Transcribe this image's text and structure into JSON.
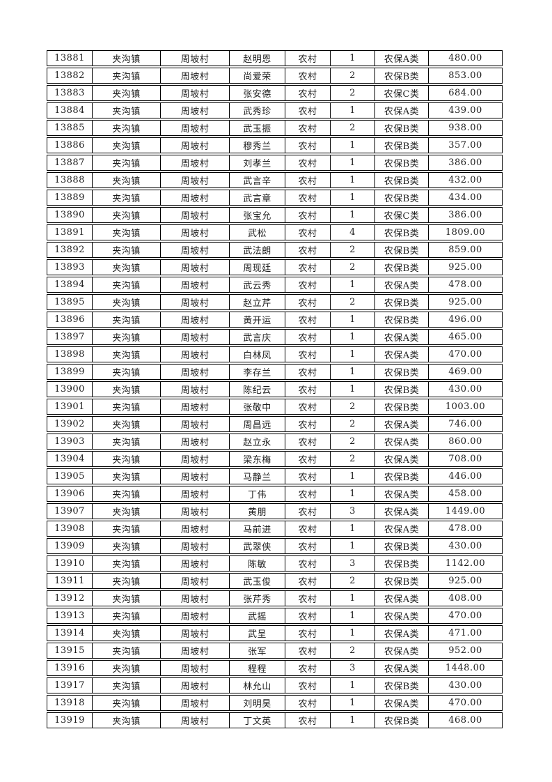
{
  "table": {
    "rows": [
      [
        "13881",
        "夹沟镇",
        "周坡村",
        "赵明恩",
        "农村",
        "1",
        "农保A类",
        "480.00"
      ],
      [
        "13882",
        "夹沟镇",
        "周坡村",
        "尚爱荣",
        "农村",
        "2",
        "农保B类",
        "853.00"
      ],
      [
        "13883",
        "夹沟镇",
        "周坡村",
        "张安德",
        "农村",
        "2",
        "农保C类",
        "684.00"
      ],
      [
        "13884",
        "夹沟镇",
        "周坡村",
        "武秀珍",
        "农村",
        "1",
        "农保A类",
        "439.00"
      ],
      [
        "13885",
        "夹沟镇",
        "周坡村",
        "武玉振",
        "农村",
        "2",
        "农保B类",
        "938.00"
      ],
      [
        "13886",
        "夹沟镇",
        "周坡村",
        "穆秀兰",
        "农村",
        "1",
        "农保B类",
        "357.00"
      ],
      [
        "13887",
        "夹沟镇",
        "周坡村",
        "刘孝兰",
        "农村",
        "1",
        "农保B类",
        "386.00"
      ],
      [
        "13888",
        "夹沟镇",
        "周坡村",
        "武言辛",
        "农村",
        "1",
        "农保B类",
        "432.00"
      ],
      [
        "13889",
        "夹沟镇",
        "周坡村",
        "武言章",
        "农村",
        "1",
        "农保B类",
        "434.00"
      ],
      [
        "13890",
        "夹沟镇",
        "周坡村",
        "张宝允",
        "农村",
        "1",
        "农保C类",
        "386.00"
      ],
      [
        "13891",
        "夹沟镇",
        "周坡村",
        "武松",
        "农村",
        "4",
        "农保B类",
        "1809.00"
      ],
      [
        "13892",
        "夹沟镇",
        "周坡村",
        "武法朗",
        "农村",
        "2",
        "农保B类",
        "859.00"
      ],
      [
        "13893",
        "夹沟镇",
        "周坡村",
        "周现廷",
        "农村",
        "2",
        "农保B类",
        "925.00"
      ],
      [
        "13894",
        "夹沟镇",
        "周坡村",
        "武云秀",
        "农村",
        "1",
        "农保A类",
        "478.00"
      ],
      [
        "13895",
        "夹沟镇",
        "周坡村",
        "赵立芹",
        "农村",
        "2",
        "农保B类",
        "925.00"
      ],
      [
        "13896",
        "夹沟镇",
        "周坡村",
        "黄开运",
        "农村",
        "1",
        "农保B类",
        "496.00"
      ],
      [
        "13897",
        "夹沟镇",
        "周坡村",
        "武言庆",
        "农村",
        "1",
        "农保A类",
        "465.00"
      ],
      [
        "13898",
        "夹沟镇",
        "周坡村",
        "白林凤",
        "农村",
        "1",
        "农保A类",
        "470.00"
      ],
      [
        "13899",
        "夹沟镇",
        "周坡村",
        "李存兰",
        "农村",
        "1",
        "农保B类",
        "469.00"
      ],
      [
        "13900",
        "夹沟镇",
        "周坡村",
        "陈纪云",
        "农村",
        "1",
        "农保B类",
        "430.00"
      ],
      [
        "13901",
        "夹沟镇",
        "周坡村",
        "张敬中",
        "农村",
        "2",
        "农保B类",
        "1003.00"
      ],
      [
        "13902",
        "夹沟镇",
        "周坡村",
        "周昌远",
        "农村",
        "2",
        "农保A类",
        "746.00"
      ],
      [
        "13903",
        "夹沟镇",
        "周坡村",
        "赵立永",
        "农村",
        "2",
        "农保A类",
        "860.00"
      ],
      [
        "13904",
        "夹沟镇",
        "周坡村",
        "梁东梅",
        "农村",
        "2",
        "农保A类",
        "708.00"
      ],
      [
        "13905",
        "夹沟镇",
        "周坡村",
        "马静兰",
        "农村",
        "1",
        "农保B类",
        "446.00"
      ],
      [
        "13906",
        "夹沟镇",
        "周坡村",
        "丁伟",
        "农村",
        "1",
        "农保A类",
        "458.00"
      ],
      [
        "13907",
        "夹沟镇",
        "周坡村",
        "黄朋",
        "农村",
        "3",
        "农保A类",
        "1449.00"
      ],
      [
        "13908",
        "夹沟镇",
        "周坡村",
        "马前进",
        "农村",
        "1",
        "农保A类",
        "478.00"
      ],
      [
        "13909",
        "夹沟镇",
        "周坡村",
        "武翠侠",
        "农村",
        "1",
        "农保B类",
        "430.00"
      ],
      [
        "13910",
        "夹沟镇",
        "周坡村",
        "陈敏",
        "农村",
        "3",
        "农保B类",
        "1142.00"
      ],
      [
        "13911",
        "夹沟镇",
        "周坡村",
        "武玉俊",
        "农村",
        "2",
        "农保B类",
        "925.00"
      ],
      [
        "13912",
        "夹沟镇",
        "周坡村",
        "张芹秀",
        "农村",
        "1",
        "农保A类",
        "408.00"
      ],
      [
        "13913",
        "夹沟镇",
        "周坡村",
        "武摇",
        "农村",
        "1",
        "农保A类",
        "470.00"
      ],
      [
        "13914",
        "夹沟镇",
        "周坡村",
        "武呈",
        "农村",
        "1",
        "农保A类",
        "471.00"
      ],
      [
        "13915",
        "夹沟镇",
        "周坡村",
        "张军",
        "农村",
        "2",
        "农保A类",
        "952.00"
      ],
      [
        "13916",
        "夹沟镇",
        "周坡村",
        "程程",
        "农村",
        "3",
        "农保A类",
        "1448.00"
      ],
      [
        "13917",
        "夹沟镇",
        "周坡村",
        "林允山",
        "农村",
        "1",
        "农保B类",
        "430.00"
      ],
      [
        "13918",
        "夹沟镇",
        "周坡村",
        "刘明昊",
        "农村",
        "1",
        "农保A类",
        "470.00"
      ],
      [
        "13919",
        "夹沟镇",
        "周坡村",
        "丁文英",
        "农村",
        "1",
        "农保B类",
        "468.00"
      ]
    ],
    "colors": {
      "border": "#000000",
      "text": "#1c1c1c",
      "page_background": "#ffffff"
    }
  }
}
